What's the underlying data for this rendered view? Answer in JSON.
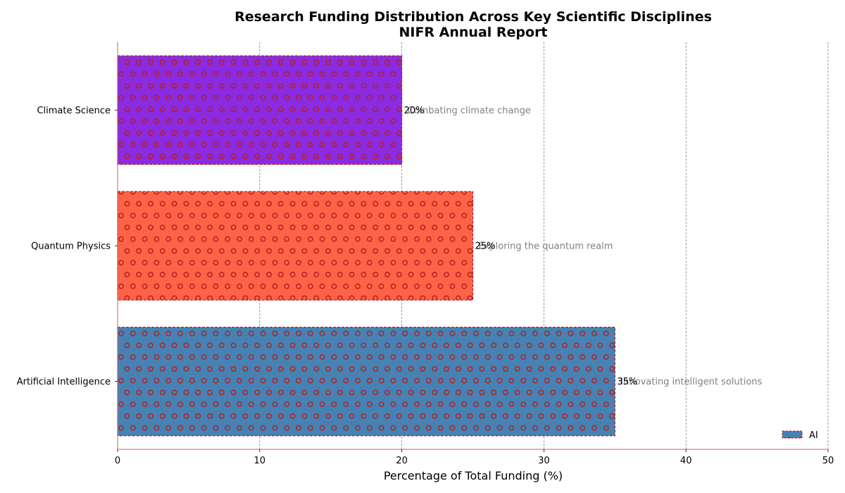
{
  "chart_data": {
    "type": "bar",
    "orientation": "horizontal",
    "title": "Research Funding Distribution Across Key Scientific Disciplines",
    "subtitle": "NIFR Annual Report",
    "xlabel": "Percentage of Total Funding (%)",
    "ylabel": "",
    "xlim": [
      0,
      50
    ],
    "xticks": [
      0,
      10,
      20,
      30,
      40,
      50
    ],
    "grid": "x-dashed",
    "categories": [
      "Artificial Intelligence",
      "Quantum Physics",
      "Climate Science"
    ],
    "values": [
      35,
      25,
      20
    ],
    "value_labels": [
      "35%",
      "25%",
      "20%"
    ],
    "annotations": [
      "Innovating intelligent solutions",
      "Exploring the quantum realm",
      "Combating climate change"
    ],
    "colors": [
      "#4682b4",
      "#ff6347",
      "#8a2be2"
    ],
    "hatch": "circles",
    "hatch_color": "#b22222",
    "legend": {
      "position": "bottom-right",
      "entries": [
        "AI"
      ]
    }
  }
}
